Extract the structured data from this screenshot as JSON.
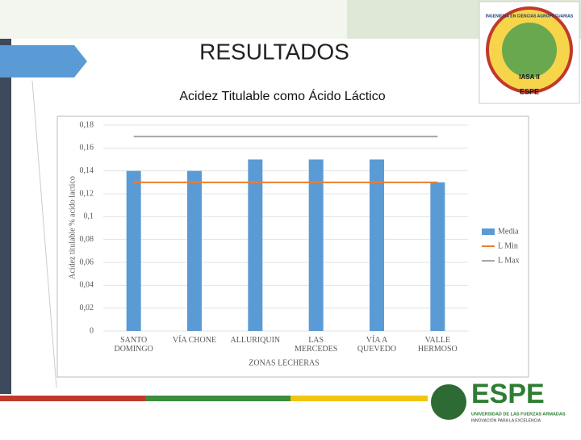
{
  "slide": {
    "title": "RESULTADOS",
    "subtitle": "Acidez Titulable como Ácido Láctico",
    "logo_top": {
      "ring": "INGENIERÍA EN CIENCIAS AGROPECUARIAS",
      "campus": "IASA II",
      "badge": "ESPE"
    },
    "logo_bottom": {
      "name": "ESPE",
      "line1": "UNIVERSIDAD DE LAS FUERZAS ARMADAS",
      "line2": "INNOVACIÓN PARA LA EXCELENCIA"
    }
  },
  "chart_data": {
    "type": "bar",
    "x_label": "ZONAS LECHERAS",
    "y_label": "Acidez titulable % acido lactico",
    "categories": [
      "SANTO\nDOMINGO",
      "VÍA CHONE",
      "ALLURIQUIN",
      "LAS\nMERCEDES",
      "VÍA A\nQUEVEDO",
      "VALLE\nHERMOSO"
    ],
    "series": [
      {
        "name": "Media",
        "type": "bar",
        "color": "#5b9bd5",
        "values": [
          0.14,
          0.14,
          0.15,
          0.15,
          0.15,
          0.13
        ]
      },
      {
        "name": "L Min",
        "type": "line",
        "color": "#ed7d31",
        "values": [
          0.13,
          0.13,
          0.13,
          0.13,
          0.13,
          0.13
        ]
      },
      {
        "name": "L Max",
        "type": "line",
        "color": "#a5a5a5",
        "values": [
          0.17,
          0.17,
          0.17,
          0.17,
          0.17,
          0.17
        ]
      }
    ],
    "ylim": [
      0,
      0.18
    ],
    "yticks": [
      0,
      {
        "value": 0.02,
        "label": "0,02"
      },
      {
        "value": 0.04,
        "label": "0,04"
      },
      {
        "value": 0.06,
        "label": "0,06"
      },
      {
        "value": 0.08,
        "label": "0,08"
      },
      {
        "value": 0.1,
        "label": "0,1"
      },
      {
        "value": 0.12,
        "label": "0,12"
      },
      {
        "value": 0.14,
        "label": "0,14"
      },
      {
        "value": 0.16,
        "label": "0,16"
      },
      {
        "value": 0.18,
        "label": "0,18"
      }
    ],
    "grid": true,
    "legend": "right"
  }
}
